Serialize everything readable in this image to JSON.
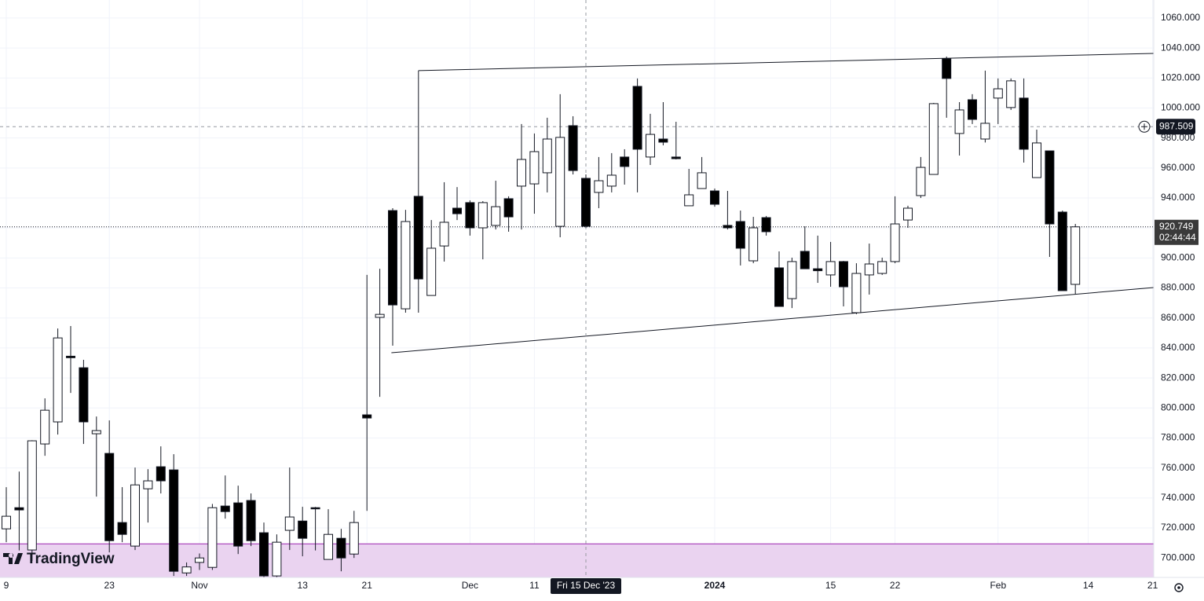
{
  "chart_data": {
    "type": "candlestick",
    "brand": "TradingView",
    "categories": [
      "9",
      null,
      null,
      null,
      null,
      null,
      null,
      null,
      "23",
      null,
      null,
      null,
      null,
      null,
      null,
      "Nov",
      null,
      null,
      null,
      null,
      null,
      null,
      null,
      "13",
      null,
      null,
      null,
      null,
      "21",
      null,
      null,
      null,
      null,
      null,
      null,
      null,
      "Dec",
      null,
      null,
      null,
      null,
      "11",
      null,
      null,
      null,
      null,
      null,
      null,
      null,
      null,
      null,
      null,
      null,
      null,
      null,
      "2024",
      null,
      null,
      null,
      null,
      null,
      null,
      null,
      null,
      "15",
      null,
      null,
      null,
      null,
      "22",
      null,
      null,
      null,
      null,
      null,
      null,
      null,
      "Feb",
      null,
      null,
      null,
      null,
      null,
      null,
      "14",
      null,
      null,
      null,
      null,
      "21"
    ],
    "emphasized_category": 55,
    "open": [
      719.4,
      733.5,
      705.3,
      776.0,
      790.7,
      834.5,
      826.8,
      782.8,
      769.7,
      723.6,
      707.9,
      746.1,
      760.8,
      758.7,
      690,
      697,
      693.7,
      734.6,
      736.7,
      738.3,
      716.8,
      688,
      718.4,
      724.6,
      733.5,
      699,
      713.1,
      702.6,
      795.4,
      860.4,
      931.6,
      866.1,
      941.1,
      875.0,
      908.0,
      933.2,
      936.9,
      920.1,
      921.7,
      939.5,
      947.9,
      949.4,
      956.8,
      921.1,
      988.2,
      953.1,
      943.7,
      947.9,
      967.3,
      1014.4,
      967.3,
      979.3,
      967.3,
      934.8,
      946.3,
      944.7,
      921.7,
      924.3,
      898.1,
      926.9,
      893.4,
      872.9,
      904.4,
      892.8,
      888.7,
      897.6,
      863.5,
      888.7,
      889.7,
      897.6,
      925.3,
      941.6,
      955.7,
      1032.8,
      983.0,
      1005.5,
      979.3,
      1006.6,
      1000.3,
      1006.6,
      953.6,
      971.4,
      930.6,
      882.4,
      null,
      null,
      null,
      null,
      null,
      null
    ],
    "high": [
      747.2,
      757.6,
      778.5,
      806.4,
      853.0,
      854.6,
      832.1,
      794.3,
      791.7,
      747.2,
      760.3,
      759.2,
      774.4,
      769.2,
      697,
      703,
      736,
      755.0,
      748.2,
      743.0,
      723.6,
      715.7,
      760.3,
      734.1,
      734,
      732.5,
      719.4,
      731.4,
      888.7,
      892.8,
      933.2,
      932.1,
      1024.9,
      925.3,
      950.5,
      947.3,
      938.4,
      937.9,
      951.5,
      941.1,
      989.3,
      983.0,
      993.5,
      1009.2,
      994.5,
      955.7,
      967.3,
      969.9,
      972.5,
      1019.7,
      996.1,
      1003.9,
      990.8,
      959.4,
      967.3,
      946.3,
      944.7,
      931.6,
      927.4,
      928,
      904.4,
      900.2,
      921.1,
      914.9,
      910.7,
      898,
      896.5,
      909.6,
      900.2,
      941.1,
      934.8,
      967.3,
      1003.4,
      1034.3,
      1003.9,
      1009.2,
      1024.9,
      1019.7,
      1019.7,
      1019.7,
      985.6,
      971.4,
      931.6,
      922.7,
      null,
      null,
      null,
      null,
      null,
      null
    ],
    "low": [
      710.5,
      705,
      698,
      768.1,
      782.3,
      810,
      776.0,
      740.9,
      703.7,
      710.5,
      705.3,
      723.6,
      743.0,
      688,
      688,
      692,
      692,
      726.2,
      702.6,
      707.9,
      687,
      687,
      705.3,
      701.1,
      705,
      699,
      691.1,
      700,
      731.4,
      807.4,
      841.5,
      863.5,
      863.5,
      875,
      897.6,
      925.3,
      914.9,
      899.1,
      919.0,
      917.5,
      919.0,
      929.5,
      943.7,
      913.8,
      955.7,
      920.1,
      933.2,
      943.7,
      948.9,
      943.7,
      962.0,
      975.1,
      965.7,
      934.8,
      946.3,
      934.2,
      919.0,
      895.0,
      896.5,
      914.9,
      867.7,
      866.6,
      892.8,
      883.4,
      880.8,
      867.7,
      862.5,
      875.6,
      888.7,
      896.5,
      920.1,
      940,
      955.7,
      993.5,
      968.3,
      989.3,
      977,
      989.3,
      998.7,
      963.6,
      953.6,
      900.7,
      878.2,
      875.6,
      null,
      null,
      null,
      null,
      null,
      null
    ],
    "close": [
      727.8,
      732,
      778.1,
      798.5,
      846.7,
      833.5,
      790.7,
      784.9,
      711.5,
      715.7,
      748.7,
      751.4,
      751.4,
      691.1,
      694,
      700,
      733.5,
      730.9,
      707.9,
      711.5,
      688,
      710.5,
      727.3,
      713.1,
      733,
      715.7,
      700,
      723.6,
      793.3,
      862.4,
      868.7,
      924.3,
      886.0,
      906.5,
      923.8,
      929.5,
      920.1,
      936.9,
      934.2,
      927.4,
      965.7,
      970.9,
      979.3,
      980.4,
      958.3,
      921.1,
      951.5,
      955.2,
      961.0,
      972.5,
      982.4,
      977.2,
      966.2,
      942.1,
      956.8,
      935.8,
      920.1,
      906.5,
      920.1,
      917.5,
      867.7,
      897.6,
      892.8,
      891.5,
      897.6,
      880.8,
      889.7,
      896.0,
      897.6,
      922.7,
      933.2,
      960.4,
      1002.9,
      1019.7,
      998.7,
      992.4,
      989.8,
      1012.8,
      1018.1,
      972.5,
      976.7,
      922.7,
      878.2,
      920.749,
      null,
      null,
      null,
      null,
      null,
      null
    ],
    "up_color": "#ffffff",
    "down_color": "#000000",
    "ylim": [
      687,
      1072
    ],
    "yticks": [
      {
        "value": 700,
        "label": "700.000"
      },
      {
        "value": 720,
        "label": "720.000"
      },
      {
        "value": 740,
        "label": "740.000"
      },
      {
        "value": 760,
        "label": "760.000"
      },
      {
        "value": 780,
        "label": "780.000"
      },
      {
        "value": 800,
        "label": "800.000"
      },
      {
        "value": 820,
        "label": "820.000"
      },
      {
        "value": 840,
        "label": "840.000"
      },
      {
        "value": 860,
        "label": "860.000"
      },
      {
        "value": 880,
        "label": "880.000"
      },
      {
        "value": 900,
        "label": "900.000"
      },
      {
        "value": 920,
        "label": "920.000"
      },
      {
        "value": 940,
        "label": "940.000"
      },
      {
        "value": 960,
        "label": "960.000"
      },
      {
        "value": 980,
        "label": "980.000"
      },
      {
        "value": 1000,
        "label": "1000.000"
      },
      {
        "value": 1020,
        "label": "1020.000"
      },
      {
        "value": 1040,
        "label": "1040.000"
      },
      {
        "value": 1060,
        "label": "1060.000"
      }
    ],
    "grid": true,
    "last_price": {
      "value": 920.749,
      "label": "920.749",
      "countdown": "02:44:44"
    },
    "crosshair": {
      "index": 45,
      "x_label": "Fri 15 Dec '23",
      "y": {
        "value": 987.509,
        "label": "987.509"
      }
    },
    "trend_lines": [
      {
        "x": [
          32,
          89.1
        ],
        "values": [
          1024.9,
          1036.4
        ]
      },
      {
        "x": [
          29.9,
          89.1
        ],
        "values": [
          836.8,
          880.3
        ]
      }
    ],
    "zone": {
      "from": 687,
      "to": 709.4,
      "color": "#ead3f0",
      "border": "#9c27b0"
    }
  }
}
